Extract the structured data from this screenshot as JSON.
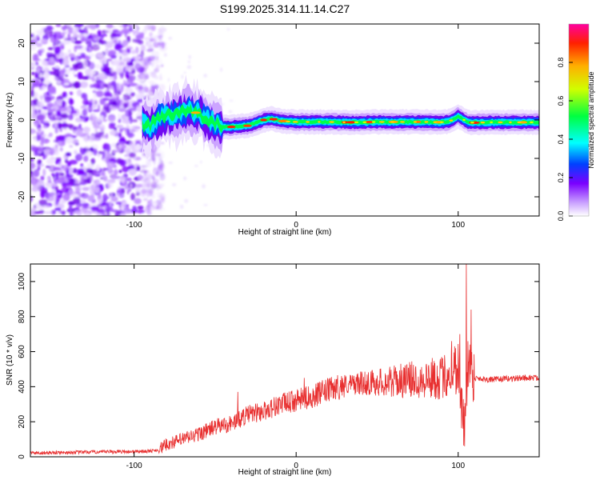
{
  "title": "S199.2025.314.11.14.C27",
  "colorbar": {
    "label": "Normalized spectral amplitude",
    "ticks": [
      "0.0",
      "0.2",
      "0.4",
      "0.6",
      "0.8"
    ],
    "tick_values": [
      0.0,
      0.2,
      0.4,
      0.6,
      0.8
    ],
    "range": [
      0,
      1
    ],
    "colors": [
      "#ffffff",
      "#c9a0ff",
      "#7a00ff",
      "#0040ff",
      "#00ffff",
      "#00ff40",
      "#d0ff00",
      "#ffb000",
      "#ff2000",
      "#ff00a0"
    ]
  },
  "chart_data": [
    {
      "type": "heatmap",
      "title": "S199.2025.314.11.14.C27",
      "xlabel": "Height of straight line (km)",
      "ylabel": "Frequency (Hz)",
      "xlim": [
        -164,
        150
      ],
      "ylim": [
        -25,
        25
      ],
      "xticks": [
        -100,
        0,
        100
      ],
      "yticks": [
        -20,
        -10,
        0,
        10,
        20
      ],
      "ridge": {
        "x": [
          -95,
          -90,
          -85,
          -80,
          -75,
          -70,
          -65,
          -60,
          -55,
          -50,
          -45,
          -40,
          -35,
          -30,
          -25,
          -20,
          -15,
          -10,
          -5,
          0,
          10,
          20,
          30,
          40,
          50,
          60,
          70,
          80,
          90,
          95,
          100,
          103,
          106,
          110,
          120,
          130,
          140,
          150
        ],
        "freq": [
          -1,
          -1.5,
          0.5,
          1,
          1.5,
          2,
          2.5,
          1.5,
          0,
          -1,
          -1.8,
          -1.8,
          -1.6,
          -1.5,
          -0.8,
          0,
          0.3,
          -0.2,
          -0.4,
          -0.5,
          -0.5,
          -0.5,
          -0.6,
          -0.6,
          -0.5,
          -0.5,
          -0.5,
          -0.5,
          -0.6,
          -0.3,
          1.0,
          0.2,
          -0.6,
          -0.7,
          -0.6,
          -0.6,
          -0.6,
          -0.6
        ]
      },
      "noise_region_x": [
        -164,
        -90
      ]
    },
    {
      "type": "line",
      "title": "",
      "xlabel": "Height of straight line (km)",
      "ylabel": "SNR (10 * v/v)",
      "xlim": [
        -164,
        150
      ],
      "ylim": [
        0,
        1100
      ],
      "xticks": [
        -100,
        0,
        100
      ],
      "yticks": [
        0,
        200,
        400,
        600,
        800,
        1000
      ],
      "series": [
        {
          "name": "SNR",
          "color": "#e83030",
          "x": [
            -164,
            -140,
            -120,
            -100,
            -90,
            -85,
            -80,
            -70,
            -60,
            -50,
            -40,
            -30,
            -20,
            -10,
            0,
            10,
            20,
            30,
            40,
            50,
            60,
            70,
            80,
            90,
            95,
            100,
            102,
            104,
            106,
            110,
            120,
            130,
            140,
            150
          ],
          "y": [
            22,
            25,
            28,
            30,
            32,
            40,
            70,
            100,
            130,
            170,
            190,
            240,
            260,
            300,
            320,
            345,
            380,
            410,
            420,
            425,
            430,
            440,
            445,
            450,
            480,
            520,
            300,
            120,
            560,
            450,
            440,
            445,
            450,
            450
          ],
          "spikes": [
            {
              "x": -36,
              "y": 370
            },
            {
              "x": 5,
              "y": 450
            },
            {
              "x": 96,
              "y": 660
            },
            {
              "x": 101,
              "y": 700
            },
            {
              "x": 104,
              "y": 60
            },
            {
              "x": 105,
              "y": 1100
            },
            {
              "x": 108,
              "y": 840
            }
          ]
        }
      ]
    }
  ]
}
